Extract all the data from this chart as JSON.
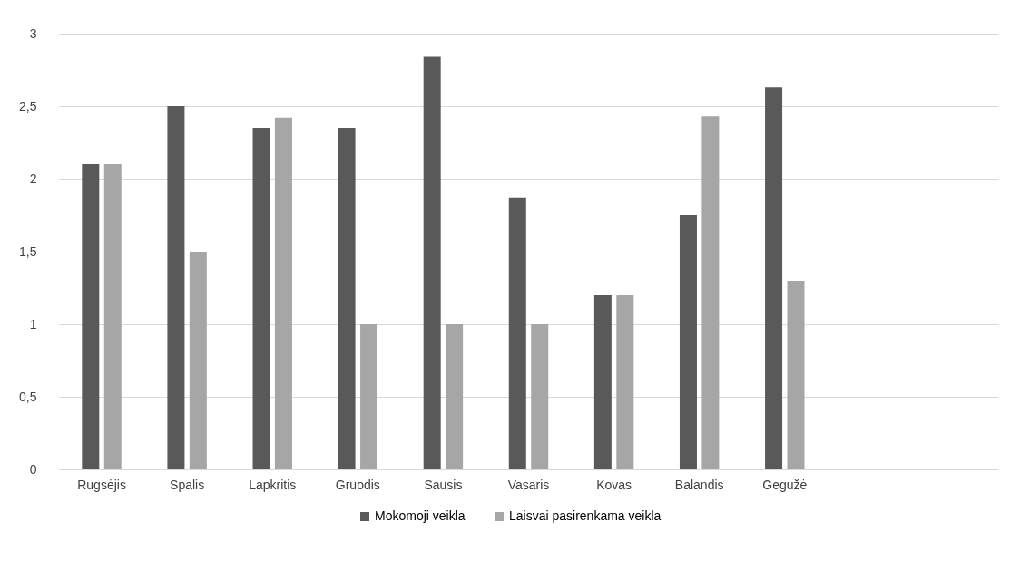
{
  "chart_data": {
    "type": "bar",
    "categories": [
      "Rugsėjis",
      "Spalis",
      "Lapkritis",
      "Gruodis",
      "Sausis",
      "Vasaris",
      "Kovas",
      "Balandis",
      "Gegužė",
      null,
      null
    ],
    "series": [
      {
        "name": "Mokomoji veikla",
        "color": "#595959",
        "values": [
          2.1,
          2.5,
          2.35,
          2.35,
          2.84,
          1.87,
          1.2,
          1.75,
          2.63,
          null,
          null
        ]
      },
      {
        "name": "Laisvai pasirenkama veikla",
        "color": "#a6a6a6",
        "values": [
          2.1,
          1.5,
          2.42,
          1.0,
          1.0,
          1.0,
          1.2,
          2.43,
          1.3,
          null,
          null
        ]
      }
    ],
    "ylim": [
      0,
      3
    ],
    "yticks": [
      0,
      {
        "value": 0.5,
        "label": "0,5"
      },
      1,
      {
        "value": 1.5,
        "label": "1,5"
      },
      2,
      {
        "value": 2.5,
        "label": "2,5"
      },
      3
    ],
    "grid": "y",
    "legend": "bottom"
  }
}
